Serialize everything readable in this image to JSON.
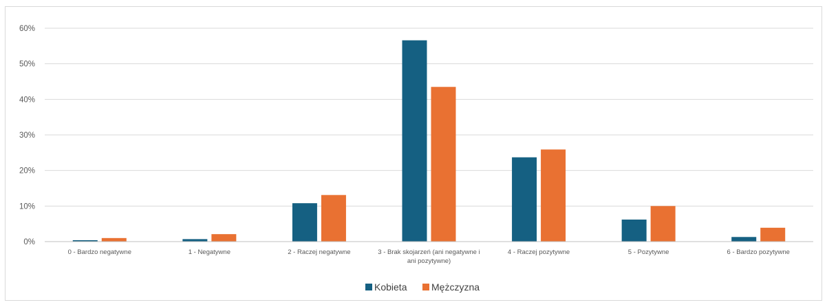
{
  "chart_data": {
    "type": "bar",
    "categories": [
      "0 - Bardzo negatywne",
      "1 - Negatywne",
      "2 - Raczej negatywne",
      "3 - Brak skojarzeń (ani negatywne i ani pozytywne)",
      "4 - Raczej pozytywne",
      "5 - Pozytywne",
      "6 - Bardzo pozytywne"
    ],
    "series": [
      {
        "name": "Kobieta",
        "color": "#156082",
        "values": [
          0.4,
          0.7,
          10.8,
          56.6,
          23.7,
          6.2,
          1.3
        ]
      },
      {
        "name": "Mężczyzna",
        "color": "#E97132",
        "values": [
          1.0,
          2.1,
          13.1,
          43.5,
          25.9,
          10.0,
          3.9
        ]
      }
    ],
    "yticks": [
      "0%",
      "10%",
      "20%",
      "30%",
      "40%",
      "50%",
      "60%"
    ],
    "ylim": [
      0,
      60
    ],
    "grid": true,
    "legend_position": "bottom"
  }
}
